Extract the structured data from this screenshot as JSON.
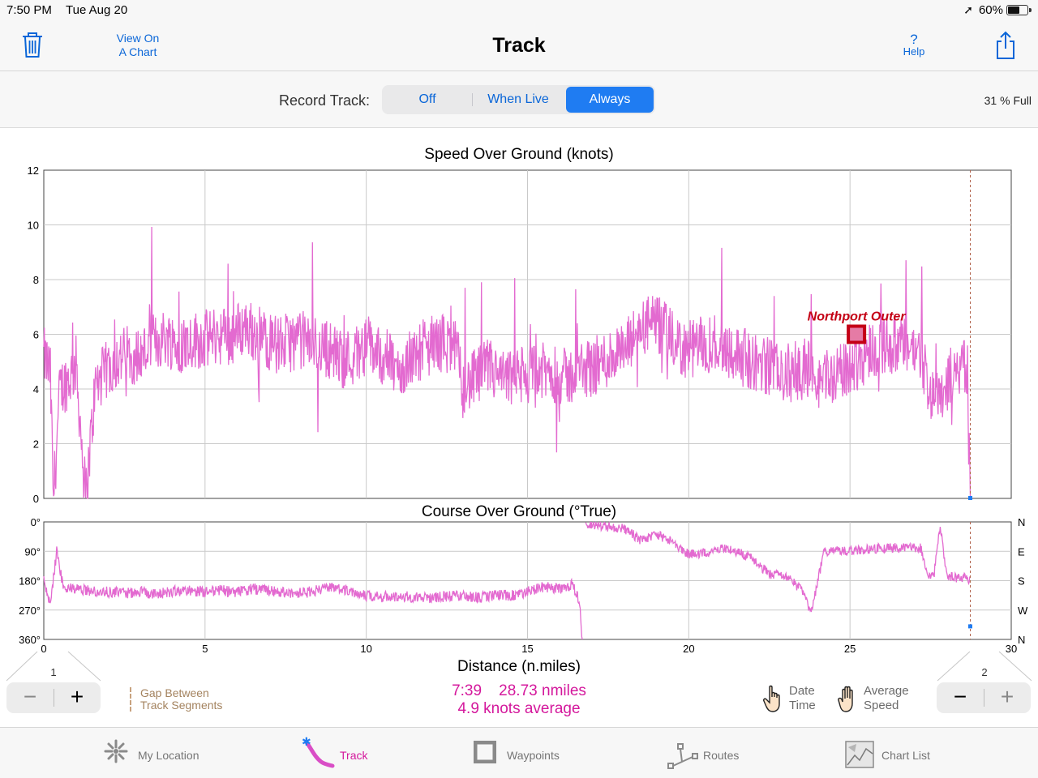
{
  "status_bar": {
    "time": "7:50 PM",
    "date": "Tue Aug 20",
    "battery": "60%",
    "battery_level": 0.6
  },
  "nav": {
    "title": "Track",
    "view_on_chart_line1": "View On",
    "view_on_chart_line2": "A Chart",
    "help_symbol": "?",
    "help_label": "Help",
    "icons": {
      "trash": "trash-icon",
      "share": "share-icon"
    }
  },
  "record": {
    "label": "Record Track:",
    "options": [
      "Off",
      "When Live",
      "Always"
    ],
    "selected": "Always",
    "full_text": "31 % Full"
  },
  "colors": {
    "accent": "#1f7cf2",
    "track": "#e36ad0",
    "summary": "#d4189c",
    "waypoint": "#c40015",
    "gap_line": "#c8a27f"
  },
  "chart_data": [
    {
      "type": "line",
      "title": "Speed Over Ground (knots)",
      "xlabel": "Distance (n.miles)",
      "xlim": [
        0,
        30
      ],
      "ylim": [
        0,
        12
      ],
      "yticks": [
        "0",
        "2",
        "4",
        "6",
        "8",
        "10",
        "12"
      ],
      "xticks": [
        "0",
        "5",
        "10",
        "15",
        "20",
        "25",
        "30"
      ],
      "grid": true,
      "cursor_x": 28.73,
      "waypoint": {
        "name": "Northport Outer",
        "x": 25.2,
        "y": 6.0
      },
      "series": [
        {
          "values_xy": [
            [
              0,
              5.2
            ],
            [
              0.2,
              4.6
            ],
            [
              0.3,
              0
            ],
            [
              0.5,
              4.0
            ],
            [
              0.8,
              4.4
            ],
            [
              1.0,
              4.9
            ],
            [
              1.3,
              0
            ],
            [
              1.6,
              4.1
            ],
            [
              1.9,
              4.6
            ],
            [
              2.2,
              5.0
            ],
            [
              2.6,
              5.3
            ],
            [
              3.0,
              5.2
            ],
            [
              3.4,
              5.7
            ],
            [
              3.8,
              5.9
            ],
            [
              4.2,
              5.6
            ],
            [
              4.6,
              5.8
            ],
            [
              5.0,
              5.8
            ],
            [
              5.4,
              6.0
            ],
            [
              5.8,
              5.9
            ],
            [
              6.2,
              6.3
            ],
            [
              6.5,
              6.1
            ],
            [
              6.8,
              5.9
            ],
            [
              7.2,
              5.6
            ],
            [
              7.6,
              5.7
            ],
            [
              8.0,
              5.8
            ],
            [
              8.4,
              5.6
            ],
            [
              8.8,
              5.5
            ],
            [
              9.2,
              5.1
            ],
            [
              9.6,
              5.2
            ],
            [
              10.0,
              5.6
            ],
            [
              10.4,
              5.3
            ],
            [
              10.8,
              5.0
            ],
            [
              11.0,
              4.5
            ],
            [
              11.5,
              5.3
            ],
            [
              12.0,
              5.6
            ],
            [
              12.4,
              5.7
            ],
            [
              12.8,
              5.4
            ],
            [
              13.0,
              4.0
            ],
            [
              13.4,
              4.4
            ],
            [
              13.8,
              4.8
            ],
            [
              14.2,
              4.3
            ],
            [
              14.6,
              4.4
            ],
            [
              15.0,
              4.5
            ],
            [
              15.4,
              4.6
            ],
            [
              15.8,
              4.6
            ],
            [
              16.2,
              4.4
            ],
            [
              16.7,
              4.7
            ],
            [
              17.2,
              4.9
            ],
            [
              17.6,
              5.2
            ],
            [
              18.0,
              5.3
            ],
            [
              18.4,
              6.1
            ],
            [
              18.8,
              6.4
            ],
            [
              19.2,
              6.2
            ],
            [
              19.6,
              5.6
            ],
            [
              20.0,
              5.4
            ],
            [
              20.4,
              5.6
            ],
            [
              20.8,
              5.7
            ],
            [
              21.2,
              5.5
            ],
            [
              21.6,
              5.2
            ],
            [
              22.0,
              5.0
            ],
            [
              22.4,
              4.9
            ],
            [
              22.8,
              4.5
            ],
            [
              23.2,
              4.6
            ],
            [
              23.6,
              4.8
            ],
            [
              24.0,
              4.4
            ],
            [
              24.4,
              4.5
            ],
            [
              24.8,
              4.6
            ],
            [
              25.2,
              5.0
            ],
            [
              25.6,
              5.4
            ],
            [
              26.0,
              5.6
            ],
            [
              26.4,
              5.6
            ],
            [
              26.8,
              5.5
            ],
            [
              27.2,
              5.3
            ],
            [
              27.5,
              3.8
            ],
            [
              27.9,
              4.0
            ],
            [
              28.3,
              4.8
            ],
            [
              28.6,
              4.9
            ],
            [
              28.73,
              0.05
            ]
          ]
        }
      ]
    },
    {
      "type": "line",
      "title": "Course Over Ground (°True)",
      "xlim": [
        0,
        30
      ],
      "ylim": [
        0,
        360
      ],
      "yticks": [
        "0°",
        "90°",
        "180°",
        "270°",
        "360°"
      ],
      "yticks_right": [
        "N",
        "E",
        "S",
        "W",
        "N"
      ],
      "xticks": [
        "0",
        "5",
        "10",
        "15",
        "20",
        "25",
        "30"
      ],
      "grid": true,
      "cursor_x": 28.73,
      "series": [
        {
          "values_xy": [
            [
              0,
              170
            ],
            [
              0.2,
              260
            ],
            [
              0.4,
              90
            ],
            [
              0.6,
              200
            ],
            [
              1.0,
              205
            ],
            [
              1.5,
              212
            ],
            [
              2.0,
              215
            ],
            [
              2.5,
              218
            ],
            [
              3.0,
              215
            ],
            [
              3.5,
              220
            ],
            [
              4.0,
              213
            ],
            [
              4.5,
              210
            ],
            [
              5.0,
              214
            ],
            [
              5.5,
              210
            ],
            [
              6.0,
              215
            ],
            [
              6.5,
              205
            ],
            [
              7.0,
              212
            ],
            [
              7.5,
              215
            ],
            [
              8.0,
              218
            ],
            [
              8.5,
              210
            ],
            [
              9.0,
              200
            ],
            [
              9.5,
              210
            ],
            [
              10.0,
              225
            ],
            [
              10.5,
              230
            ],
            [
              11.0,
              228
            ],
            [
              11.5,
              230
            ],
            [
              12.0,
              232
            ],
            [
              12.5,
              228
            ],
            [
              13.0,
              228
            ],
            [
              13.5,
              232
            ],
            [
              14.0,
              225
            ],
            [
              14.5,
              225
            ],
            [
              15.0,
              215
            ],
            [
              15.5,
              200
            ],
            [
              16.0,
              205
            ],
            [
              16.4,
              190
            ],
            [
              16.6,
              240
            ],
            [
              16.7,
              360
            ]
          ],
          "values_xy_2": [
            [
              16.8,
              5
            ],
            [
              17.5,
              15
            ],
            [
              18.0,
              20
            ],
            [
              18.5,
              55
            ],
            [
              19.0,
              40
            ],
            [
              19.5,
              60
            ],
            [
              20.0,
              100
            ],
            [
              20.5,
              95
            ],
            [
              21.0,
              80
            ],
            [
              21.5,
              90
            ],
            [
              22.0,
              115
            ],
            [
              22.5,
              160
            ],
            [
              23.0,
              165
            ],
            [
              23.5,
              210
            ],
            [
              23.8,
              280
            ],
            [
              24.0,
              180
            ],
            [
              24.2,
              90
            ],
            [
              25.0,
              90
            ],
            [
              26.0,
              80
            ],
            [
              26.8,
              80
            ],
            [
              27.2,
              80
            ],
            [
              27.4,
              170
            ],
            [
              27.6,
              165
            ],
            [
              27.8,
              10
            ],
            [
              28.0,
              170
            ],
            [
              28.5,
              170
            ],
            [
              28.73,
              180
            ]
          ]
        }
      ]
    }
  ],
  "bottom": {
    "zoom_left_num": "1",
    "zoom_right_num": "2",
    "minus": "−",
    "plus": "+",
    "gap_line1": "Gap Between",
    "gap_line2": "Track Segments",
    "summary_line1": "7:39    28.73 nmiles",
    "summary_line2": "4.9 knots average",
    "date_time_line1": "Date",
    "date_time_line2": "Time",
    "avg_speed_line1": "Average",
    "avg_speed_line2": "Speed"
  },
  "tabs": [
    {
      "label": "My Location",
      "icon": "compass-icon",
      "active": false
    },
    {
      "label": "Track",
      "icon": "track-icon",
      "active": true
    },
    {
      "label": "Waypoints",
      "icon": "waypoint-icon",
      "active": false
    },
    {
      "label": "Routes",
      "icon": "route-icon",
      "active": false
    },
    {
      "label": "Chart List",
      "icon": "chart-list-icon",
      "active": false
    }
  ]
}
